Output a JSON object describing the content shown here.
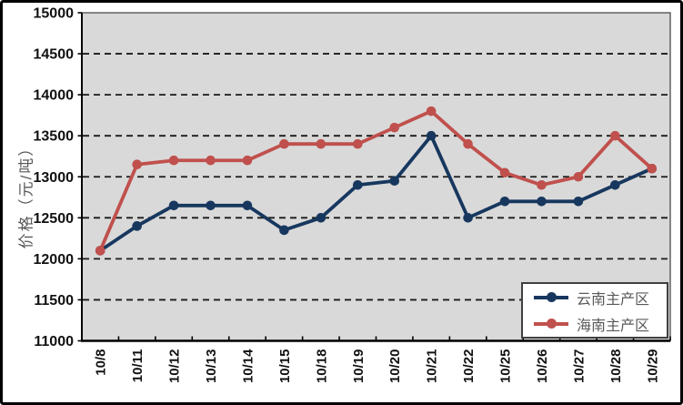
{
  "chart_data": {
    "type": "line",
    "title": "",
    "xlabel": "",
    "ylabel": "价格（元/吨）",
    "ylim": [
      11000,
      15000
    ],
    "ytick_interval": 500,
    "grid": "horizontal-dashed",
    "plot_background": "#D9D9D9",
    "legend_position": "inside-bottom-right",
    "categories": [
      "10/8",
      "10/11",
      "10/12",
      "10/13",
      "10/14",
      "10/15",
      "10/18",
      "10/19",
      "10/20",
      "10/21",
      "10/22",
      "10/25",
      "10/26",
      "10/27",
      "10/28",
      "10/29"
    ],
    "series": [
      {
        "name": "云南主产区",
        "color": "#17375E",
        "values": [
          12100,
          12400,
          12650,
          12650,
          12650,
          12350,
          12500,
          12900,
          12950,
          13500,
          12500,
          12700,
          12700,
          12700,
          12900,
          13100
        ]
      },
      {
        "name": "海南主产区",
        "color": "#C0504D",
        "values": [
          12100,
          13150,
          13200,
          13200,
          13200,
          13400,
          13400,
          13400,
          13600,
          13800,
          13400,
          13050,
          12900,
          13000,
          13500,
          13100
        ]
      }
    ],
    "colors": {
      "axis_text": "#111111",
      "secondary_text": "#595959",
      "gridline": "#1a1a1a",
      "border": "#000000"
    }
  }
}
